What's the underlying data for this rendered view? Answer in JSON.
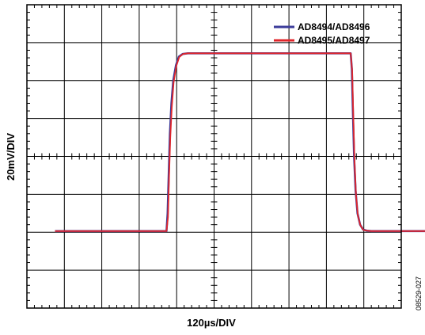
{
  "chart_data": {
    "type": "line",
    "xlabel": "120µs/DIV",
    "ylabel": "20mV/DIV",
    "divisions": {
      "x": 10,
      "y": 8
    },
    "xlim": [
      0,
      10
    ],
    "ylim": [
      0,
      8
    ],
    "grid": true,
    "legend_position": "top-right",
    "series": [
      {
        "name": "AD8494/AD8496",
        "color": "#3b3b9a",
        "x": [
          0.75,
          3.73,
          3.76,
          3.79,
          3.82,
          3.86,
          3.91,
          3.98,
          4.06,
          4.16,
          4.3,
          8.65,
          8.68,
          8.71,
          8.74,
          8.78,
          8.83,
          8.9,
          8.98,
          9.08,
          9.2,
          10.75
        ],
        "y": [
          2.03,
          2.03,
          2.5,
          3.6,
          4.6,
          5.4,
          6.0,
          6.4,
          6.63,
          6.7,
          6.72,
          6.72,
          6.3,
          5.1,
          4.0,
          3.1,
          2.5,
          2.2,
          2.07,
          2.04,
          2.03,
          2.03
        ]
      },
      {
        "name": "AD8495/AD8497",
        "color": "#e0252a",
        "x": [
          0.75,
          3.73,
          3.77,
          3.8,
          3.83,
          3.87,
          3.92,
          3.99,
          4.07,
          4.17,
          4.3,
          8.65,
          8.69,
          8.72,
          8.75,
          8.79,
          8.84,
          8.91,
          8.99,
          9.09,
          9.2,
          10.75
        ],
        "y": [
          2.03,
          2.03,
          2.4,
          3.5,
          4.5,
          5.3,
          5.95,
          6.38,
          6.62,
          6.7,
          6.72,
          6.72,
          6.25,
          5.0,
          3.9,
          3.0,
          2.45,
          2.18,
          2.06,
          2.04,
          2.03,
          2.03
        ]
      }
    ],
    "annotation": "08529-027"
  }
}
